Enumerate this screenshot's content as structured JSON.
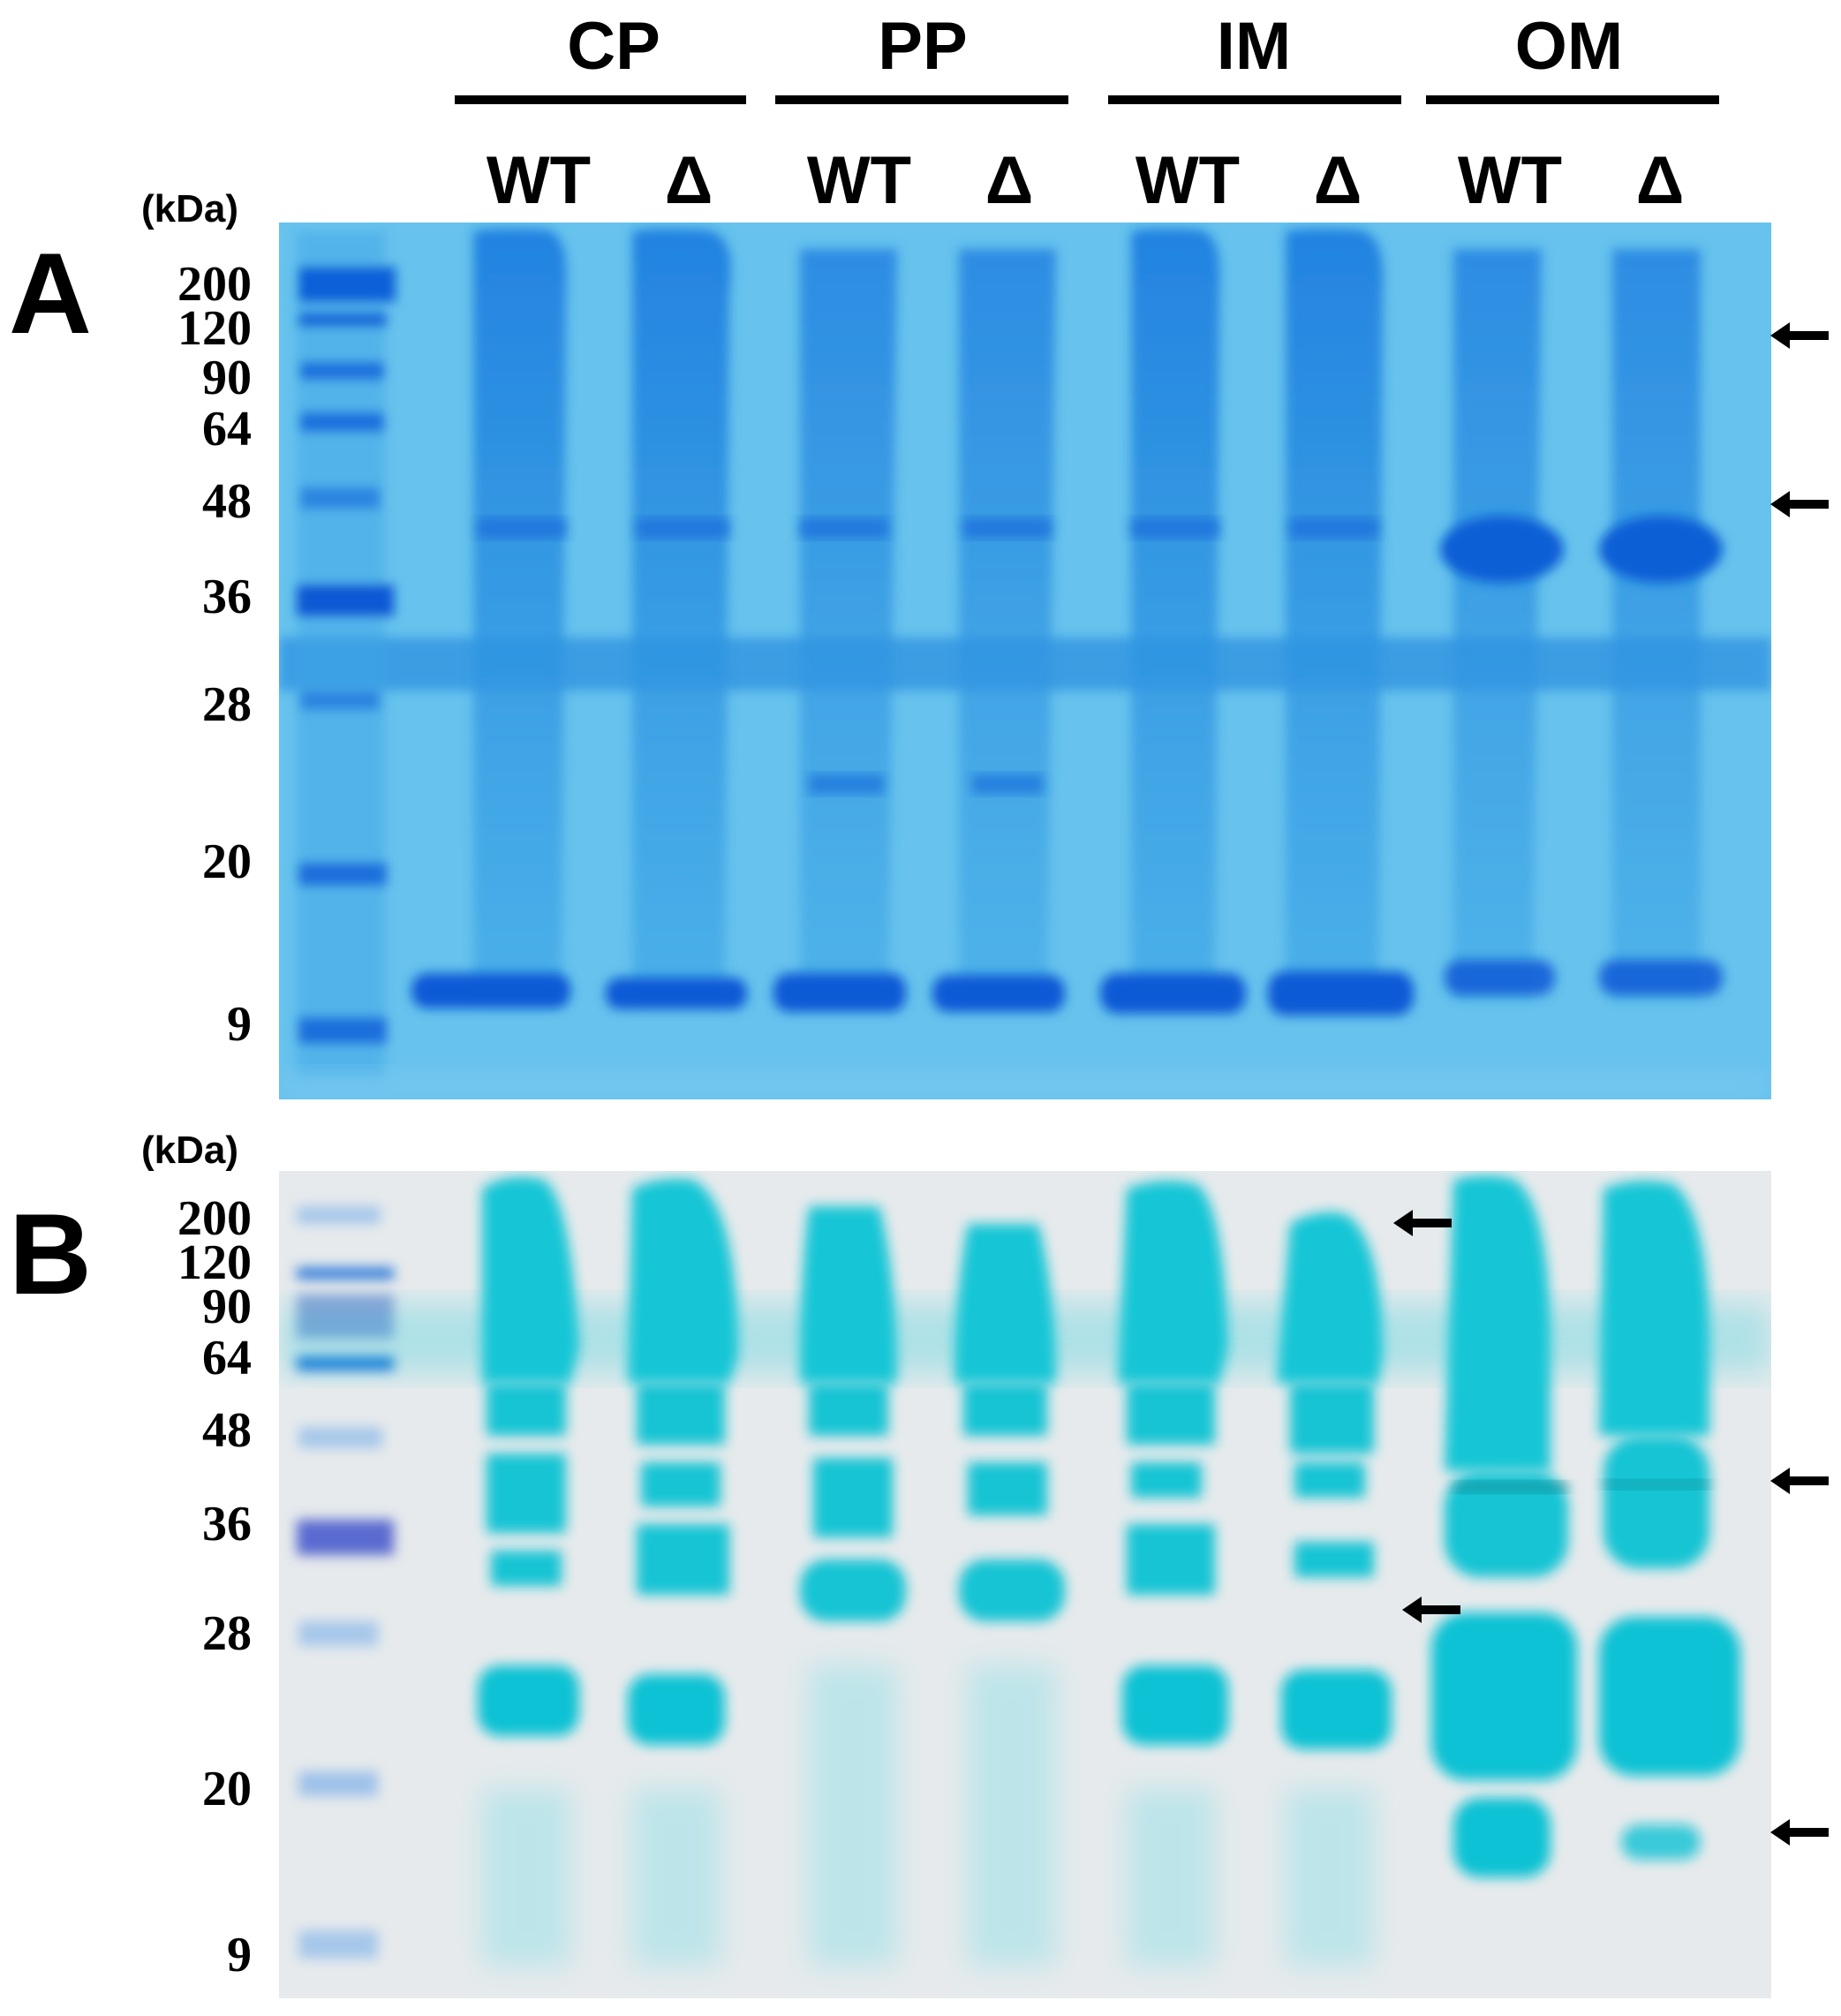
{
  "groups": [
    "CP",
    "PP",
    "IM",
    "OM"
  ],
  "lanes": [
    "WT",
    "Δ",
    "WT",
    "Δ",
    "WT",
    "Δ",
    "WT",
    "Δ"
  ],
  "panels": [
    {
      "letter": "A",
      "unit": "(kDa)",
      "markers": [
        "200",
        "120",
        "90",
        "64",
        "48",
        "36",
        "28",
        "20",
        "9"
      ],
      "stain_color": "#2a8fe0",
      "arrows": [
        "arrow",
        "arrow"
      ]
    },
    {
      "letter": "B",
      "unit": "(kDa)",
      "markers": [
        "200",
        "120",
        "90",
        "64",
        "48",
        "36",
        "28",
        "20",
        "9"
      ],
      "stain_color": "#10c8d8",
      "arrows": [
        "arrow",
        "arrow",
        "arrow",
        "arrow"
      ]
    }
  ]
}
